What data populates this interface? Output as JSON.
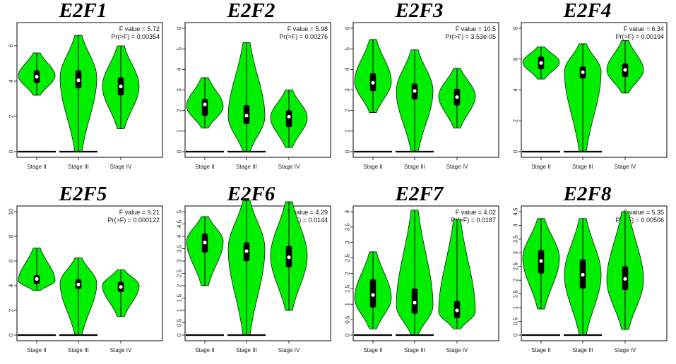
{
  "chart_data": [
    {
      "type": "violin",
      "title": "E2F1",
      "categories": [
        "Stage II",
        "Stage III",
        "Stage IV"
      ],
      "ylim": [
        0,
        7
      ],
      "yticks": [
        0,
        2,
        4,
        6
      ],
      "stats": {
        "f_label": "F value = 5.72",
        "p_label": "Pr(>F) = 0.00354"
      },
      "series": [
        {
          "min": 3.2,
          "q1": 3.9,
          "median": 4.25,
          "q3": 4.6,
          "max": 5.6,
          "mode": 4.3,
          "baseline": true
        },
        {
          "min": 0,
          "q1": 3.6,
          "median": 4.05,
          "q3": 4.6,
          "max": 6.6,
          "mode": 4.2,
          "baseline": true
        },
        {
          "min": 1.3,
          "q1": 3.2,
          "median": 3.7,
          "q3": 4.2,
          "max": 6.0,
          "mode": 3.7,
          "baseline": false
        }
      ]
    },
    {
      "type": "violin",
      "title": "E2F2",
      "categories": [
        "Stage II",
        "Stage III",
        "Stage IV"
      ],
      "ylim": [
        0,
        6
      ],
      "yticks": [
        0,
        1,
        2,
        3,
        4,
        5,
        6
      ],
      "stats": {
        "f_label": "F value = 5.98",
        "p_label": "Pr(>F) = 0.00276"
      },
      "series": [
        {
          "min": 1.15,
          "q1": 1.75,
          "median": 2.3,
          "q3": 2.55,
          "max": 3.6,
          "mode": 2.2,
          "baseline": true
        },
        {
          "min": 0,
          "q1": 1.35,
          "median": 1.75,
          "q3": 2.25,
          "max": 5.3,
          "mode": 1.7,
          "baseline": true
        },
        {
          "min": 0.2,
          "q1": 1.2,
          "median": 1.7,
          "q3": 2.0,
          "max": 3.0,
          "mode": 1.65,
          "baseline": false
        }
      ]
    },
    {
      "type": "violin",
      "title": "E2F3",
      "categories": [
        "Stage II",
        "Stage III",
        "Stage IV"
      ],
      "ylim": [
        0,
        6
      ],
      "yticks": [
        0,
        1,
        2,
        3,
        4,
        5,
        6
      ],
      "stats": {
        "f_label": "F value = 10.5",
        "p_label": "Pr(>F) = 3.53e-05"
      },
      "series": [
        {
          "min": 1.9,
          "q1": 2.95,
          "median": 3.35,
          "q3": 3.8,
          "max": 5.45,
          "mode": 3.4,
          "baseline": true
        },
        {
          "min": 0,
          "q1": 2.55,
          "median": 2.95,
          "q3": 3.3,
          "max": 4.95,
          "mode": 2.95,
          "baseline": true
        },
        {
          "min": 1.15,
          "q1": 2.25,
          "median": 2.65,
          "q3": 3.05,
          "max": 4.05,
          "mode": 2.7,
          "baseline": false
        }
      ]
    },
    {
      "type": "violin",
      "title": "E2F4",
      "categories": [
        "Stage II",
        "Stage III",
        "Stage IV"
      ],
      "ylim": [
        0,
        8
      ],
      "yticks": [
        0,
        2,
        4,
        6,
        8
      ],
      "stats": {
        "f_label": "F value = 6.34",
        "p_label": "Pr(>F) = 0.00194"
      },
      "series": [
        {
          "min": 4.7,
          "q1": 5.35,
          "median": 5.75,
          "q3": 6.15,
          "max": 6.8,
          "mode": 5.8,
          "baseline": true
        },
        {
          "min": 0,
          "q1": 4.75,
          "median": 5.15,
          "q3": 5.5,
          "max": 7.0,
          "mode": 5.2,
          "baseline": true
        },
        {
          "min": 3.8,
          "q1": 4.85,
          "median": 5.3,
          "q3": 5.7,
          "max": 7.2,
          "mode": 5.3,
          "baseline": false
        }
      ]
    },
    {
      "type": "violin",
      "title": "E2F5",
      "categories": [
        "Stage II",
        "Stage III",
        "Stage IV"
      ],
      "ylim": [
        0,
        10
      ],
      "yticks": [
        0,
        2,
        4,
        6,
        8,
        10
      ],
      "stats": {
        "f_label": "F value = 9.21",
        "p_label": "Pr(>F) = 0.000122"
      },
      "series": [
        {
          "min": 3.6,
          "q1": 4.15,
          "median": 4.55,
          "q3": 4.85,
          "max": 7.05,
          "mode": 4.4,
          "baseline": true
        },
        {
          "min": 0,
          "q1": 3.75,
          "median": 4.1,
          "q3": 4.5,
          "max": 6.25,
          "mode": 4.2,
          "baseline": true
        },
        {
          "min": 1.5,
          "q1": 3.5,
          "median": 3.9,
          "q3": 4.3,
          "max": 5.3,
          "mode": 4.0,
          "baseline": false
        }
      ]
    },
    {
      "type": "violin",
      "title": "E2F6",
      "categories": [
        "Stage II",
        "Stage III",
        "Stage IV"
      ],
      "ylim": [
        0,
        5
      ],
      "yticks": [
        0,
        0.5,
        1,
        1.5,
        2,
        2.5,
        3,
        3.5,
        4,
        4.5,
        5
      ],
      "stats": {
        "f_label": "F value = 4.29",
        "p_label": "Pr(>F) = 0.0144"
      },
      "series": [
        {
          "min": 2.0,
          "q1": 3.35,
          "median": 3.75,
          "q3": 4.1,
          "max": 4.8,
          "mode": 3.8,
          "baseline": true
        },
        {
          "min": 0,
          "q1": 3.0,
          "median": 3.4,
          "q3": 3.75,
          "max": 5.45,
          "mode": 3.5,
          "baseline": true
        },
        {
          "min": 1.0,
          "q1": 2.75,
          "median": 3.15,
          "q3": 3.6,
          "max": 5.4,
          "mode": 3.2,
          "baseline": false
        }
      ]
    },
    {
      "type": "violin",
      "title": "E2F7",
      "categories": [
        "Stage II",
        "Stage III",
        "Stage IV"
      ],
      "ylim": [
        0,
        4
      ],
      "yticks": [
        0,
        0.5,
        1,
        1.5,
        2,
        2.5,
        3,
        3.5,
        4
      ],
      "stats": {
        "f_label": "F value = 4.02",
        "p_label": "Pr(>F) = 0.0187"
      },
      "series": [
        {
          "min": 0.2,
          "q1": 0.9,
          "median": 1.3,
          "q3": 1.8,
          "max": 2.7,
          "mode": 1.2,
          "baseline": true
        },
        {
          "min": 0,
          "q1": 0.7,
          "median": 1.05,
          "q3": 1.5,
          "max": 4.05,
          "mode": 0.95,
          "baseline": true
        },
        {
          "min": 0.2,
          "q1": 0.55,
          "median": 0.8,
          "q3": 1.1,
          "max": 3.75,
          "mode": 0.75,
          "baseline": false
        }
      ]
    },
    {
      "type": "violin",
      "title": "E2F8",
      "categories": [
        "Stage II",
        "Stage III",
        "Stage IV"
      ],
      "ylim": [
        0,
        4.5
      ],
      "yticks": [
        0,
        0.5,
        1,
        1.5,
        2,
        2.5,
        3,
        3.5,
        4,
        4.5
      ],
      "stats": {
        "f_label": "F value = 5.35",
        "p_label": "Pr(>F) = 0.00506"
      },
      "series": [
        {
          "min": 0.95,
          "q1": 2.25,
          "median": 2.7,
          "q3": 3.1,
          "max": 4.25,
          "mode": 2.8,
          "baseline": true
        },
        {
          "min": 0,
          "q1": 1.7,
          "median": 2.2,
          "q3": 2.75,
          "max": 4.25,
          "mode": 2.2,
          "baseline": true
        },
        {
          "min": 0.2,
          "q1": 1.65,
          "median": 2.05,
          "q3": 2.5,
          "max": 4.5,
          "mode": 2.0,
          "baseline": false
        }
      ]
    }
  ]
}
